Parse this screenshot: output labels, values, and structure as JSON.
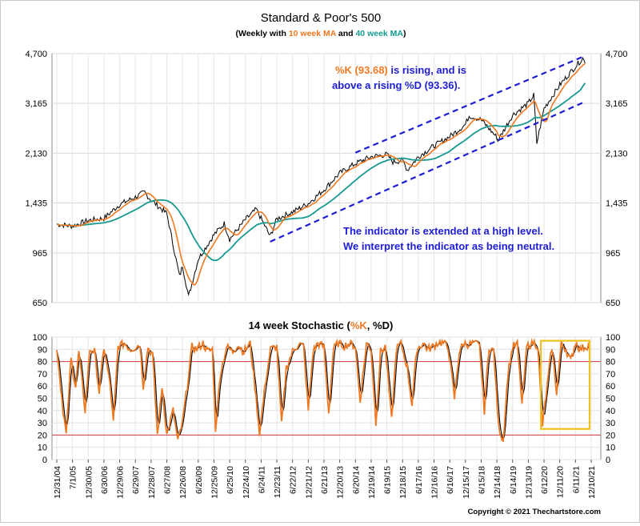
{
  "page": {
    "title": "Standard & Poor's 500",
    "subtitle": {
      "prefix": "(Weekly with ",
      "ma10": "10 week MA",
      "and": " and ",
      "ma40": "40 week MA",
      "suffix": ")"
    },
    "copyright": "Copyright © 2021 Thechartstore.com"
  },
  "colors": {
    "price": "#000000",
    "ma10": "#f07820",
    "ma40": "#169a90",
    "channel": "#1d1dd6",
    "annotation": "#1d1dd6",
    "highlight_k": "#f07820",
    "stoch_k": "#f07820",
    "stoch_d": "#000000",
    "ref_lines": "#d23a3a",
    "highlight_box": "#f0c020",
    "grid": "#d9d9d9"
  },
  "chart_data": [
    {
      "type": "line",
      "title": "Standard & Poor's 500",
      "y_scale": "log",
      "ylim": [
        650,
        4700
      ],
      "y_ticks": [
        "4,700",
        "3,165",
        "2,130",
        "1,435",
        "965",
        "650"
      ],
      "y_tick_values": [
        4700,
        3165,
        2130,
        1435,
        965,
        650
      ],
      "grid": true,
      "x": [
        "2004-12-31",
        "2005-07-01",
        "2005-12-30",
        "2006-06-30",
        "2006-12-29",
        "2007-06-29",
        "2007-10-12",
        "2007-12-28",
        "2008-06-27",
        "2008-11-21",
        "2008-12-26",
        "2009-03-06",
        "2009-06-26",
        "2009-12-25",
        "2010-04-23",
        "2010-06-25",
        "2010-12-24",
        "2011-04-29",
        "2011-06-24",
        "2011-10-07",
        "2011-12-23",
        "2012-06-22",
        "2012-12-21",
        "2013-06-21",
        "2013-12-20",
        "2014-06-20",
        "2014-12-19",
        "2015-06-19",
        "2015-08-28",
        "2015-12-18",
        "2016-02-12",
        "2016-06-17",
        "2016-12-16",
        "2017-06-16",
        "2017-12-15",
        "2018-01-26",
        "2018-06-15",
        "2018-12-14",
        "2018-12-24",
        "2019-06-14",
        "2019-12-13",
        "2020-02-14",
        "2020-03-20",
        "2020-06-12",
        "2020-12-11",
        "2021-06-11",
        "2021-09-03",
        "2021-10-01"
      ],
      "series": [
        {
          "name": "Price",
          "values": [
            1212,
            1194,
            1248,
            1270,
            1418,
            1503,
            1562,
            1468,
            1318,
            800,
            872,
            683,
            919,
            1115,
            1217,
            1076,
            1257,
            1364,
            1268,
            1099,
            1265,
            1335,
            1430,
            1595,
            1818,
            1963,
            2070,
            2110,
            1988,
            2012,
            1865,
            2071,
            2259,
            2432,
            2676,
            2873,
            2779,
            2417,
            2351,
            2886,
            3168,
            3380,
            2305,
            3041,
            3663,
            4247,
            4535,
            4357
          ]
        }
      ],
      "channel": {
        "upper": {
          "x": [
            "2014-06-20",
            "2021-10-01"
          ],
          "values": [
            2140,
            4620
          ]
        },
        "lower": {
          "x": [
            "2011-10-07",
            "2021-10-01"
          ],
          "values": [
            1055,
            3210
          ]
        }
      },
      "annotations": [
        {
          "k_prefix": "%K (93.68)",
          "k_rest": " is rising, and is",
          "line2": "above a rising %D (93.36)."
        },
        {
          "line1": "The indicator is extended at a high level.",
          "line2": "We interpret the indicator as being neutral."
        }
      ]
    },
    {
      "type": "line",
      "title": {
        "prefix": "14 week Stochastic (",
        "k": "%K",
        "comma": ", ",
        "d": "%D",
        "suffix": ")"
      },
      "ylim": [
        0,
        100
      ],
      "y_ticks": [
        0,
        10,
        20,
        30,
        40,
        50,
        60,
        70,
        80,
        90,
        100
      ],
      "reference_lines": [
        80,
        20
      ],
      "grid": true,
      "x_tick_labels": [
        "12/31/04",
        "7/1/05",
        "12/30/05",
        "6/30/06",
        "12/29/06",
        "6/29/07",
        "12/28/07",
        "6/27/08",
        "12/26/08",
        "6/26/09",
        "12/25/09",
        "6/25/10",
        "12/24/10",
        "6/24/11",
        "12/23/11",
        "6/22/12",
        "12/21/12",
        "6/21/13",
        "12/20/13",
        "6/20/14",
        "12/19/14",
        "6/19/15",
        "12/18/15",
        "6/17/16",
        "12/16/16",
        "6/16/17",
        "12/15/17",
        "6/15/18",
        "12/14/18",
        "6/14/19",
        "12/13/19",
        "6/12/20",
        "12/11/20",
        "6/11/21",
        "12/10/21"
      ],
      "k_points": [
        [
          0,
          92
        ],
        [
          0.4,
          40
        ],
        [
          0.6,
          20
        ],
        [
          0.9,
          82
        ],
        [
          1.2,
          60
        ],
        [
          1.4,
          88
        ],
        [
          1.8,
          40
        ],
        [
          2.1,
          90
        ],
        [
          2.4,
          88
        ],
        [
          2.7,
          55
        ],
        [
          3.0,
          92
        ],
        [
          3.4,
          60
        ],
        [
          3.6,
          30
        ],
        [
          3.9,
          92
        ],
        [
          4.3,
          95
        ],
        [
          4.7,
          90
        ],
        [
          5.0,
          92
        ],
        [
          5.3,
          94
        ],
        [
          5.5,
          60
        ],
        [
          5.8,
          92
        ],
        [
          6.1,
          85
        ],
        [
          6.4,
          20
        ],
        [
          6.7,
          60
        ],
        [
          7.0,
          20
        ],
        [
          7.4,
          40
        ],
        [
          7.7,
          15
        ],
        [
          8.0,
          30
        ],
        [
          8.3,
          60
        ],
        [
          8.6,
          92
        ],
        [
          8.9,
          90
        ],
        [
          9.3,
          95
        ],
        [
          9.6,
          88
        ],
        [
          9.9,
          90
        ],
        [
          10.1,
          25
        ],
        [
          10.4,
          70
        ],
        [
          10.8,
          92
        ],
        [
          11.2,
          88
        ],
        [
          11.5,
          94
        ],
        [
          11.9,
          88
        ],
        [
          12.3,
          95
        ],
        [
          12.6,
          60
        ],
        [
          12.9,
          22
        ],
        [
          13.3,
          65
        ],
        [
          13.6,
          90
        ],
        [
          14.0,
          92
        ],
        [
          14.3,
          28
        ],
        [
          14.6,
          75
        ],
        [
          15.0,
          88
        ],
        [
          15.4,
          95
        ],
        [
          15.7,
          92
        ],
        [
          16.0,
          40
        ],
        [
          16.3,
          88
        ],
        [
          16.6,
          95
        ],
        [
          17.0,
          92
        ],
        [
          17.3,
          38
        ],
        [
          17.6,
          90
        ],
        [
          17.9,
          95
        ],
        [
          18.3,
          93
        ],
        [
          18.7,
          95
        ],
        [
          19.0,
          92
        ],
        [
          19.3,
          48
        ],
        [
          19.7,
          95
        ],
        [
          20.0,
          90
        ],
        [
          20.3,
          30
        ],
        [
          20.6,
          88
        ],
        [
          20.9,
          92
        ],
        [
          21.3,
          32
        ],
        [
          21.6,
          90
        ],
        [
          21.9,
          95
        ],
        [
          22.3,
          75
        ],
        [
          22.6,
          45
        ],
        [
          22.9,
          90
        ],
        [
          23.3,
          95
        ],
        [
          23.6,
          90
        ],
        [
          23.9,
          92
        ],
        [
          24.3,
          96
        ],
        [
          24.6,
          95
        ],
        [
          24.9,
          92
        ],
        [
          25.3,
          50
        ],
        [
          25.6,
          88
        ],
        [
          25.9,
          95
        ],
        [
          26.3,
          94
        ],
        [
          26.6,
          96
        ],
        [
          26.9,
          92
        ],
        [
          27.2,
          40
        ],
        [
          27.5,
          92
        ],
        [
          27.8,
          88
        ],
        [
          28.1,
          28
        ],
        [
          28.4,
          15
        ],
        [
          28.7,
          70
        ],
        [
          29.0,
          92
        ],
        [
          29.3,
          94
        ],
        [
          29.6,
          45
        ],
        [
          29.9,
          92
        ],
        [
          30.3,
          96
        ],
        [
          30.6,
          93
        ],
        [
          30.9,
          28
        ],
        [
          31.2,
          60
        ],
        [
          31.5,
          92
        ],
        [
          31.8,
          55
        ],
        [
          32.1,
          95
        ],
        [
          32.4,
          90
        ],
        [
          32.7,
          80
        ],
        [
          33.0,
          96
        ],
        [
          33.3,
          90
        ],
        [
          33.6,
          92
        ],
        [
          33.9,
          94
        ]
      ],
      "highlight_from_index": 30.8,
      "highlight_range": [
        25,
        97
      ]
    }
  ]
}
